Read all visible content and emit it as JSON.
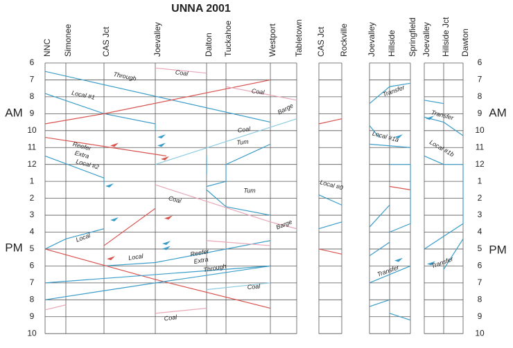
{
  "title": "UNNA 2001",
  "blocks": [
    {
      "stations": [
        "NNC",
        "Simonee",
        "CAS Jct",
        "Joevalley",
        "Dalton",
        "Tuckahoe",
        "Westport",
        "Tabletown"
      ]
    },
    {
      "stations": [
        "CAS Jct",
        "Rockville"
      ]
    },
    {
      "stations": [
        "Joevalley",
        "Hillside",
        "Springfield"
      ]
    },
    {
      "stations": [
        "Joevalley",
        "Hillside Jct",
        "Dawton"
      ]
    }
  ],
  "hours": [
    6,
    7,
    8,
    9,
    10,
    11,
    12,
    1,
    2,
    3,
    4,
    5,
    6,
    7,
    8,
    9,
    10
  ],
  "am": "AM",
  "pm": "PM",
  "trains": [
    "Through",
    "Coal",
    "Local #1",
    "Coal",
    "Barge",
    "Coal",
    "Tum",
    "Reefer",
    "Extra",
    "Local #2",
    "Tum",
    "Coal",
    "Barge",
    "Local",
    "Local",
    "Reefer",
    "Extra",
    "Through",
    "Coal",
    "Coal",
    "Local #0",
    "Transfer",
    "Local #1a",
    "Transfer",
    "Transfer",
    "Local #1b",
    "Transfer"
  ]
}
